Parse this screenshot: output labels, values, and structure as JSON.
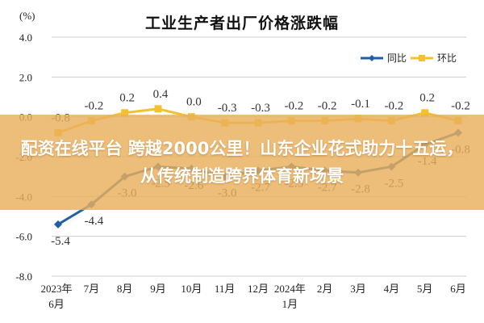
{
  "unit_label": "(%)",
  "overlay_headline": "配资在线平台 跨越2000公里！山东企业花式助力十五运，从传统制造跨界体育新场景",
  "colors": {
    "yoy": "#1f5fa8",
    "mom": "#f3c12d",
    "grid": "#cfcfcf",
    "overlay": "#e9b05c"
  },
  "chart_data": {
    "type": "line",
    "title": "工业生产者出厂价格涨跌幅",
    "ylabel": "(%)",
    "ylim": [
      -8.0,
      4.0
    ],
    "yticks": [
      "4.0",
      "2.0",
      "0.0",
      "-2.0",
      "-4.0",
      "-6.0",
      "-8.0"
    ],
    "yticks_values": [
      4,
      2,
      0,
      -2,
      -4,
      -6,
      -8
    ],
    "grid": true,
    "legend_position": "top-right",
    "categories": [
      [
        "2023年",
        "6月"
      ],
      [
        "7月"
      ],
      [
        "8月"
      ],
      [
        "9月"
      ],
      [
        "10月"
      ],
      [
        "11月"
      ],
      [
        "12月"
      ],
      [
        "2024年",
        "1月"
      ],
      [
        "2月"
      ],
      [
        "3月"
      ],
      [
        "4月"
      ],
      [
        "5月"
      ],
      [
        "6月"
      ]
    ],
    "series": [
      {
        "name": "同比",
        "values": [
          -5.4,
          -4.4,
          -3.0,
          -2.5,
          -2.6,
          -3.0,
          -2.7,
          -2.5,
          -2.7,
          -2.8,
          -2.5,
          -1.4,
          -0.8
        ],
        "labels": [
          "-5.4",
          "-4.4",
          "-3.0",
          "-2.5",
          "-2.6",
          "-3.0",
          "-2.7",
          "-2.5",
          "-2.7",
          "-2.8",
          "-2.5",
          "-1.4",
          "-0.8"
        ],
        "label_pos": "below"
      },
      {
        "name": "环比",
        "values": [
          -0.8,
          -0.2,
          0.2,
          0.4,
          0.0,
          -0.3,
          -0.3,
          -0.2,
          -0.2,
          -0.1,
          -0.2,
          0.2,
          -0.2
        ],
        "labels": [
          "-0.8",
          "-0.2",
          "0.2",
          "0.4",
          "0.0",
          "-0.3",
          "-0.3",
          "-0.2",
          "-0.2",
          "-0.1",
          "-0.2",
          "0.2",
          "-0.2"
        ],
        "label_pos": "above"
      }
    ]
  }
}
